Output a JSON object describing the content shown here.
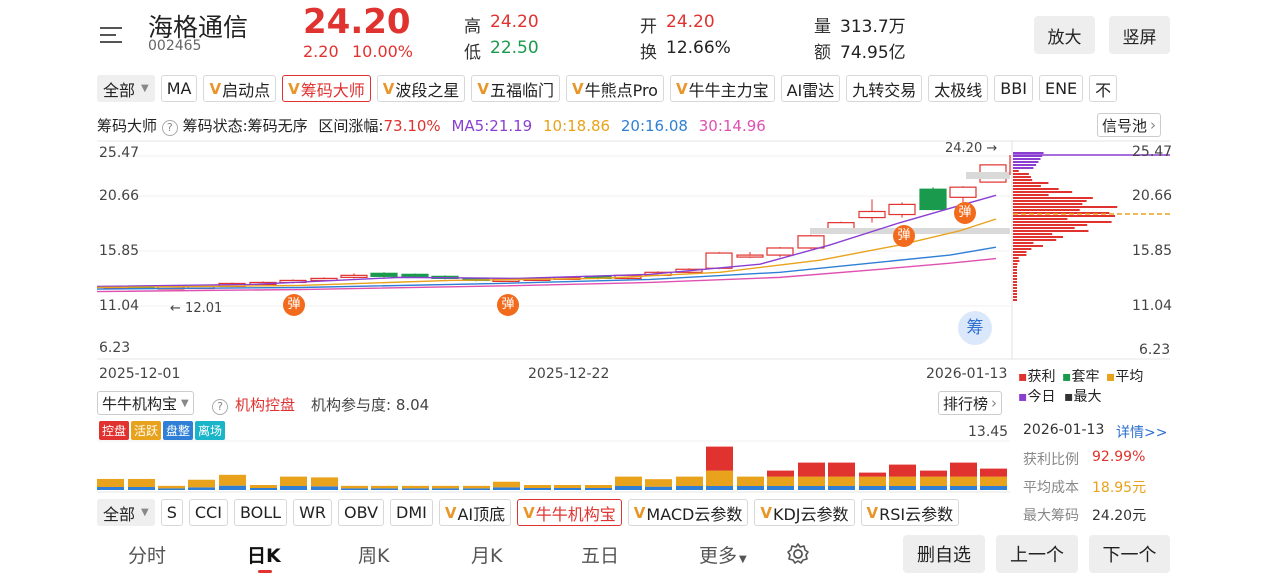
{
  "header": {
    "stock_name": "海格通信",
    "stock_code": "002465",
    "price": "24.20",
    "change": "2.20",
    "change_pct": "10.00%",
    "quotes": [
      {
        "label": "高",
        "value": "24.20"
      },
      {
        "label": "低",
        "value": "22.50"
      },
      {
        "label": "开",
        "value": "24.20"
      },
      {
        "label": "换",
        "value": "12.66%"
      },
      {
        "label": "量",
        "value": "313.7万"
      },
      {
        "label": "额",
        "value": "74.95亿"
      }
    ],
    "buttons": {
      "zoom": "放大",
      "portrait": "竖屏"
    }
  },
  "tabs": {
    "all": "全部",
    "items": [
      "MA",
      "启动点",
      "筹码大师",
      "波段之星",
      "五福临门",
      "牛熊点Pro",
      "牛牛主力宝",
      "AI雷达",
      "九转交易",
      "太极线",
      "BBI",
      "ENE",
      "不"
    ]
  },
  "info_bar": {
    "title": "筹码大师",
    "status": "筹码状态:筹码无序",
    "range": "区间涨幅:",
    "range_value": "73.10%",
    "ma5": "MA5:21.19",
    "ma10": "10:18.86",
    "ma20": "20:16.08",
    "ma30": "30:14.96",
    "signal_pool": "信号池"
  },
  "main_chart": {
    "y_labels_left": [
      "25.47",
      "20.66",
      "15.85",
      "11.04",
      "6.23"
    ],
    "y_labels_right": [
      "25.47",
      "20.66",
      "15.85",
      "11.04",
      "6.23"
    ],
    "x_labels": [
      "2025-12-01",
      "2025-12-22",
      "2026-01-13"
    ],
    "max_label": "24.20",
    "min_label": "12.01",
    "marker": "弹",
    "chip_icon": "筹"
  },
  "chip_legend": {
    "profit": "获利",
    "trapped": "套牢",
    "average": "平均",
    "today": "今日",
    "max": "最大"
  },
  "lower_panel": {
    "selector": "牛牛机构宝",
    "title": "机构控盘",
    "participation": "机构参与度: 8.04",
    "rank": "排行榜",
    "legend": [
      "控盘",
      "活跃",
      "盘整",
      "离场"
    ],
    "ymax": "13.45"
  },
  "chip_stats": {
    "date": "2026-01-13",
    "detail": "详情>>",
    "profit_ratio_label": "获利比例",
    "profit_ratio": "92.99%",
    "avg_cost_label": "平均成本",
    "avg_cost": "18.95元",
    "max_chip_label": "最大筹码",
    "max_chip": "24.20元"
  },
  "indicator_tabs": {
    "all": "全部",
    "items": [
      "S",
      "CCI",
      "BOLL",
      "WR",
      "OBV",
      "DMI",
      "AI顶底",
      "牛牛机构宝",
      "MACD云参数",
      "KDJ云参数",
      "RSI云参数"
    ]
  },
  "bottom_nav": {
    "tabs": [
      "分时",
      "日K",
      "周K",
      "月K",
      "五日",
      "更多"
    ],
    "actions": [
      "删自选",
      "上一个",
      "下一个"
    ]
  },
  "colors": {
    "up": "#e0322f",
    "down": "#1a9a4c",
    "ma5": "#8a3fd1",
    "ma10": "#e8a21b",
    "ma20": "#2f7fd6",
    "ma30": "#e050b0"
  }
}
